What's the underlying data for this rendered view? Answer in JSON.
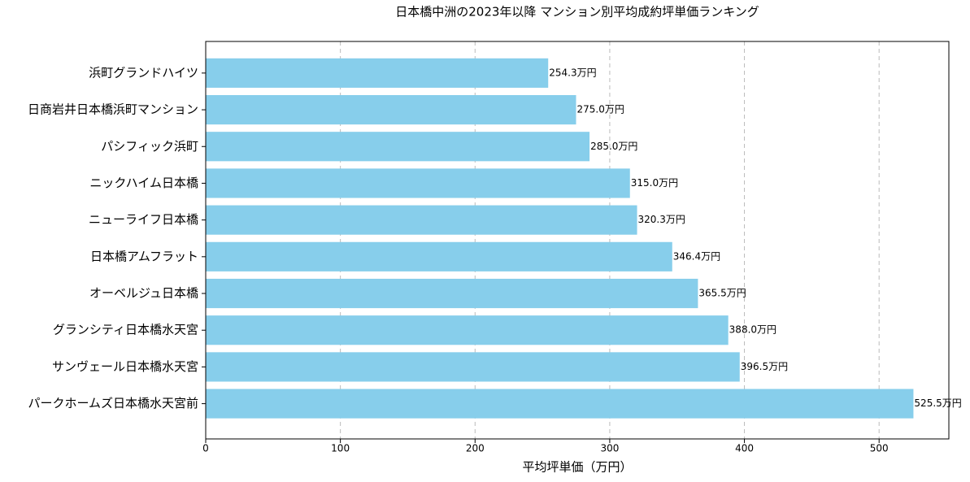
{
  "chart_data": {
    "type": "barh",
    "title": "日本橋中洲の2023年以降 マンション別平均成約坪単価ランキング",
    "x_label": "平均坪単価（万円）",
    "categories": [
      "浜町グランドハイツ",
      "日商岩井日本橋浜町マンション",
      "パシフィック浜町",
      "ニックハイム日本橋",
      "ニューライフ日本橋",
      "日本橋アムフラット",
      "オーベルジュ日本橋",
      "グランシティ日本橋水天宮",
      "サンヴェール日本橋水天宮",
      "パークホームズ日本橋水天宮前"
    ],
    "values": [
      254.3,
      275.0,
      285.0,
      315.0,
      320.3,
      346.4,
      365.5,
      388.0,
      396.5,
      525.5
    ],
    "value_labels": [
      "254.3万円",
      "275.0万円",
      "285.0万円",
      "315.0万円",
      "320.3万円",
      "346.4万円",
      "365.5万円",
      "388.0万円",
      "396.5万円",
      "525.5万円"
    ],
    "color": "#87ceeb",
    "xlim": [
      0,
      551.8
    ],
    "xticks": [
      0,
      100,
      200,
      300,
      400,
      500
    ],
    "grid": true
  }
}
